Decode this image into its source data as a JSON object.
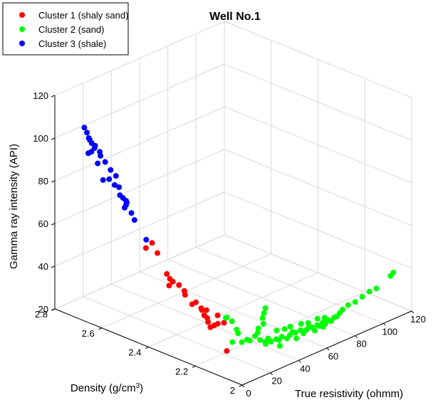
{
  "chart_data": {
    "type": "scatter3d",
    "title": "Well No.1",
    "xlabel": "True resistivity (ohmm)",
    "ylabel": "Density (g/cm³)",
    "zlabel": "Gamma ray intensity (API)",
    "xlim": [
      0,
      120
    ],
    "ylim": [
      2.0,
      2.8
    ],
    "zlim": [
      20,
      120
    ],
    "x_ticks": [
      "0",
      "20",
      "40",
      "60",
      "80",
      "100",
      "120"
    ],
    "y_ticks": [
      "2",
      "2.2",
      "2.4",
      "2.6",
      "2.8"
    ],
    "z_ticks": [
      "20",
      "40",
      "60",
      "80",
      "100",
      "120"
    ],
    "grid": true,
    "legend_position": "top-left",
    "series": [
      {
        "name": "Cluster 1 (shaly sand)",
        "color": "#ff0000",
        "points": [
          {
            "x": 1.5,
            "y": 2.42,
            "z": 65
          },
          {
            "x": 2.5,
            "y": 2.4,
            "z": 68
          },
          {
            "x": 3,
            "y": 2.38,
            "z": 64
          },
          {
            "x": 3,
            "y": 2.34,
            "z": 56
          },
          {
            "x": 3.5,
            "y": 2.33,
            "z": 54
          },
          {
            "x": 4,
            "y": 2.32,
            "z": 53
          },
          {
            "x": 3,
            "y": 2.33,
            "z": 51
          },
          {
            "x": 5,
            "y": 2.3,
            "z": 52
          },
          {
            "x": 5.5,
            "y": 2.28,
            "z": 50
          },
          {
            "x": 6,
            "y": 2.28,
            "z": 48
          },
          {
            "x": 6,
            "y": 2.25,
            "z": 45
          },
          {
            "x": 7,
            "y": 2.24,
            "z": 46
          },
          {
            "x": 7.5,
            "y": 2.22,
            "z": 44
          },
          {
            "x": 8,
            "y": 2.22,
            "z": 43
          },
          {
            "x": 8,
            "y": 2.21,
            "z": 41
          },
          {
            "x": 8.5,
            "y": 2.2,
            "z": 40
          },
          {
            "x": 9,
            "y": 2.2,
            "z": 38
          },
          {
            "x": 9,
            "y": 2.19,
            "z": 36
          },
          {
            "x": 10,
            "y": 2.18,
            "z": 37
          },
          {
            "x": 11,
            "y": 2.17,
            "z": 38
          },
          {
            "x": 12,
            "y": 2.15,
            "z": 39
          },
          {
            "x": 12.5,
            "y": 2.18,
            "z": 41
          },
          {
            "x": 9.5,
            "y": 2.21,
            "z": 43
          },
          {
            "x": 9,
            "y": 2.12,
            "z": 28
          }
        ]
      },
      {
        "name": "Cluster 2 (sand)",
        "color": "#00ff00",
        "points": [
          {
            "x": 14,
            "y": 2.15,
            "z": 41
          },
          {
            "x": 15,
            "y": 2.16,
            "z": 40
          },
          {
            "x": 16,
            "y": 2.14,
            "z": 39
          },
          {
            "x": 16,
            "y": 2.12,
            "z": 36
          },
          {
            "x": 17,
            "y": 2.12,
            "z": 34
          },
          {
            "x": 13,
            "y": 2.12,
            "z": 31
          },
          {
            "x": 18,
            "y": 2.11,
            "z": 30
          },
          {
            "x": 20,
            "y": 2.1,
            "z": 31
          },
          {
            "x": 22,
            "y": 2.1,
            "z": 30
          },
          {
            "x": 24,
            "y": 2.09,
            "z": 32
          },
          {
            "x": 26,
            "y": 2.09,
            "z": 33
          },
          {
            "x": 28,
            "y": 2.1,
            "z": 34
          },
          {
            "x": 30,
            "y": 2.09,
            "z": 36
          },
          {
            "x": 31,
            "y": 2.1,
            "z": 38
          },
          {
            "x": 32,
            "y": 2.1,
            "z": 40
          },
          {
            "x": 33,
            "y": 2.1,
            "z": 42
          },
          {
            "x": 26,
            "y": 2.08,
            "z": 30
          },
          {
            "x": 28,
            "y": 2.07,
            "z": 29
          },
          {
            "x": 30,
            "y": 2.07,
            "z": 30
          },
          {
            "x": 32,
            "y": 2.07,
            "z": 28
          },
          {
            "x": 34,
            "y": 2.06,
            "z": 29
          },
          {
            "x": 36,
            "y": 2.06,
            "z": 28
          },
          {
            "x": 38,
            "y": 2.06,
            "z": 29
          },
          {
            "x": 40,
            "y": 2.05,
            "z": 28
          },
          {
            "x": 42,
            "y": 2.05,
            "z": 29
          },
          {
            "x": 44,
            "y": 2.05,
            "z": 30
          },
          {
            "x": 46,
            "y": 2.05,
            "z": 29
          },
          {
            "x": 48,
            "y": 2.04,
            "z": 30
          },
          {
            "x": 50,
            "y": 2.04,
            "z": 28
          },
          {
            "x": 52,
            "y": 2.04,
            "z": 29
          },
          {
            "x": 54,
            "y": 2.04,
            "z": 30
          },
          {
            "x": 56,
            "y": 2.04,
            "z": 29
          },
          {
            "x": 58,
            "y": 2.03,
            "z": 30
          },
          {
            "x": 60,
            "y": 2.03,
            "z": 29
          },
          {
            "x": 62,
            "y": 2.03,
            "z": 30
          },
          {
            "x": 64,
            "y": 2.03,
            "z": 29
          },
          {
            "x": 66,
            "y": 2.03,
            "z": 30
          },
          {
            "x": 68,
            "y": 2.03,
            "z": 29
          },
          {
            "x": 70,
            "y": 2.03,
            "z": 30
          },
          {
            "x": 72,
            "y": 2.03,
            "z": 30
          },
          {
            "x": 74,
            "y": 2.03,
            "z": 31
          },
          {
            "x": 76,
            "y": 2.03,
            "z": 32
          },
          {
            "x": 80,
            "y": 2.03,
            "z": 33
          },
          {
            "x": 85,
            "y": 2.03,
            "z": 33
          },
          {
            "x": 90,
            "y": 2.03,
            "z": 34
          },
          {
            "x": 95,
            "y": 2.03,
            "z": 35
          },
          {
            "x": 100,
            "y": 2.03,
            "z": 35
          },
          {
            "x": 110,
            "y": 2.03,
            "z": 38
          },
          {
            "x": 112,
            "y": 2.03,
            "z": 39
          },
          {
            "x": 36,
            "y": 2.07,
            "z": 32
          },
          {
            "x": 40,
            "y": 2.06,
            "z": 32
          },
          {
            "x": 44,
            "y": 2.06,
            "z": 32
          },
          {
            "x": 50,
            "y": 2.05,
            "z": 32
          },
          {
            "x": 55,
            "y": 2.05,
            "z": 31
          },
          {
            "x": 60,
            "y": 2.04,
            "z": 32
          },
          {
            "x": 65,
            "y": 2.04,
            "z": 31
          },
          {
            "x": 30,
            "y": 2.08,
            "z": 27
          },
          {
            "x": 35,
            "y": 2.05,
            "z": 26
          },
          {
            "x": 45,
            "y": 2.04,
            "z": 27
          },
          {
            "x": 58,
            "y": 2.04,
            "z": 27
          },
          {
            "x": 64,
            "y": 2.04,
            "z": 27
          }
        ]
      },
      {
        "name": "Cluster 3 (shale)",
        "color": "#0000ff",
        "points": [
          {
            "x": 1,
            "y": 2.68,
            "z": 110
          },
          {
            "x": 1.2,
            "y": 2.67,
            "z": 108
          },
          {
            "x": 0.8,
            "y": 2.66,
            "z": 106
          },
          {
            "x": 1.5,
            "y": 2.66,
            "z": 105
          },
          {
            "x": 1.2,
            "y": 2.65,
            "z": 104
          },
          {
            "x": 2,
            "y": 2.64,
            "z": 103
          },
          {
            "x": 2,
            "y": 2.62,
            "z": 101
          },
          {
            "x": 2.5,
            "y": 2.62,
            "z": 99
          },
          {
            "x": 2.5,
            "y": 2.6,
            "z": 97
          },
          {
            "x": 1.5,
            "y": 2.64,
            "z": 102
          },
          {
            "x": 1,
            "y": 2.65,
            "z": 100
          },
          {
            "x": 0.5,
            "y": 2.66,
            "z": 99
          },
          {
            "x": 0.5,
            "y": 2.62,
            "z": 96
          },
          {
            "x": 3,
            "y": 2.58,
            "z": 94
          },
          {
            "x": 3.5,
            "y": 2.56,
            "z": 92
          },
          {
            "x": 2,
            "y": 2.58,
            "z": 90
          },
          {
            "x": 1,
            "y": 2.6,
            "z": 89
          },
          {
            "x": 2.5,
            "y": 2.56,
            "z": 88
          },
          {
            "x": 4,
            "y": 2.55,
            "z": 87
          },
          {
            "x": 3,
            "y": 2.54,
            "z": 84
          },
          {
            "x": 3.5,
            "y": 2.53,
            "z": 83
          },
          {
            "x": 4,
            "y": 2.52,
            "z": 82
          },
          {
            "x": 4.5,
            "y": 2.52,
            "z": 81
          },
          {
            "x": 4,
            "y": 2.52,
            "z": 80
          },
          {
            "x": 3,
            "y": 2.52,
            "z": 79
          },
          {
            "x": 4.5,
            "y": 2.5,
            "z": 77
          },
          {
            "x": 5,
            "y": 2.49,
            "z": 74
          },
          {
            "x": 5,
            "y": 2.44,
            "z": 67
          }
        ]
      }
    ]
  }
}
